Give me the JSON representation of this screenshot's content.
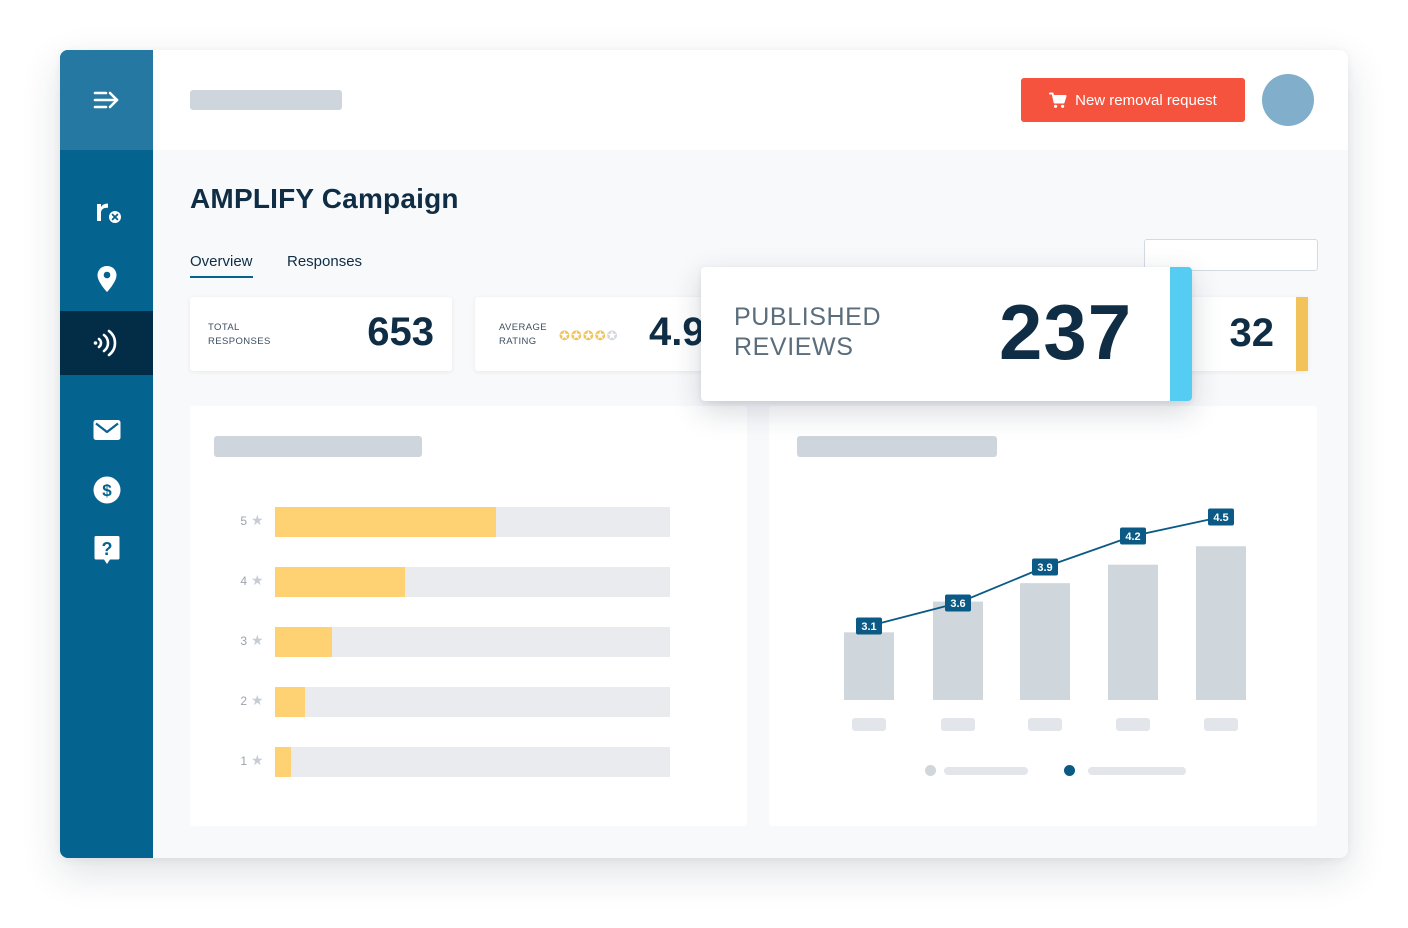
{
  "header": {
    "new_request_label": "New removal request"
  },
  "page": {
    "title": "AMPLIFY Campaign"
  },
  "tabs": [
    {
      "label": "Overview",
      "active": true
    },
    {
      "label": "Responses",
      "active": false
    }
  ],
  "sidebar": {
    "items": [
      {
        "icon": "menu-arrow-icon"
      },
      {
        "icon": "reputation-logo-icon"
      },
      {
        "icon": "location-pin-icon"
      },
      {
        "icon": "signal-waves-icon",
        "active": true
      },
      {
        "icon": "mail-icon"
      },
      {
        "icon": "dollar-icon"
      },
      {
        "icon": "help-question-icon"
      }
    ]
  },
  "stats": {
    "total_responses": {
      "label_line1": "TOTAL",
      "label_line2": "RESPONSES",
      "value": "653"
    },
    "average_rating": {
      "label_line1": "AVERAGE",
      "label_line2": "RATING",
      "value": "4.9",
      "stars_filled": 4,
      "stars_total": 5
    },
    "extra_value": "32",
    "published_reviews": {
      "label_line1": "PUBLISHED",
      "label_line2": "REVIEWS",
      "value": "237"
    }
  },
  "colors": {
    "sidebar": "#04638f",
    "sidebar_active": "#032d47",
    "accent_red": "#f5533d",
    "accent_yellow": "#f3c35b",
    "accent_cyan": "#55ccf2",
    "bar_gray": "#cfd6dc",
    "line_blue": "#0a5a85"
  },
  "chart_data": [
    {
      "type": "bar",
      "orientation": "horizontal",
      "categories": [
        "5",
        "4",
        "3",
        "2",
        "1"
      ],
      "values": [
        0.56,
        0.33,
        0.145,
        0.075,
        0.04
      ],
      "xlim": [
        0,
        1
      ]
    },
    {
      "type": "bar",
      "categories": [
        "",
        "",
        "",
        "",
        ""
      ],
      "series": [
        {
          "values": [
            3.1,
            3.6,
            3.9,
            4.2,
            4.5
          ],
          "kind": "line",
          "labels": [
            "3.1",
            "3.6",
            "3.9",
            "4.2",
            "4.5"
          ]
        },
        {
          "values": [
            3.1,
            3.6,
            3.9,
            4.2,
            4.5
          ],
          "kind": "bar"
        }
      ],
      "ylim": [
        0,
        5
      ],
      "legend": "bottom"
    }
  ]
}
